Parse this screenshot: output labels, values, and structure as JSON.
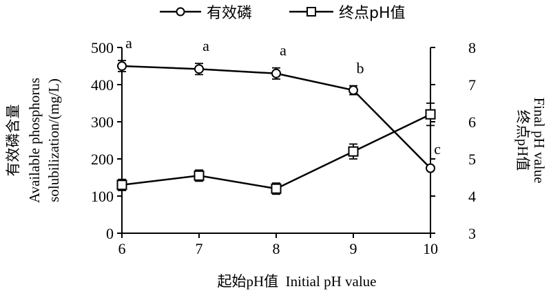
{
  "chart_data": {
    "type": "line",
    "x": [
      6,
      7,
      8,
      9,
      10
    ],
    "xlabel": "起始pH值  Initial pH value",
    "ylabel_left_cn": "有效磷含量",
    "ylabel_left_en_1": "Available phosphorus",
    "ylabel_left_en_2": "solubilization/(mg/L)",
    "ylabel_right_cn": "终点pH值",
    "ylabel_right_en": "Final pH value",
    "xlim": [
      6,
      10
    ],
    "ylim_left": [
      0,
      500
    ],
    "ylim_right": [
      3,
      8
    ],
    "x_ticks": [
      "6",
      "7",
      "8",
      "9",
      "10"
    ],
    "y_left_ticks": [
      "0",
      "100",
      "200",
      "300",
      "400",
      "500"
    ],
    "y_right_ticks": [
      "3",
      "4",
      "5",
      "6",
      "7",
      "8"
    ],
    "grid": false,
    "legend_position": "top-center",
    "series": [
      {
        "name": "有效磷",
        "axis": "left",
        "marker": "circle",
        "values": [
          450,
          442,
          430,
          385,
          175
        ],
        "errors": [
          15,
          15,
          15,
          12,
          5
        ],
        "significance": [
          "a",
          "a",
          "a",
          "b",
          "c"
        ]
      },
      {
        "name": "终点pH值",
        "axis": "right",
        "marker": "square",
        "values": [
          4.3,
          4.55,
          4.2,
          5.2,
          6.2
        ],
        "errors": [
          0.15,
          0.15,
          0.15,
          0.2,
          0.3
        ]
      }
    ]
  }
}
